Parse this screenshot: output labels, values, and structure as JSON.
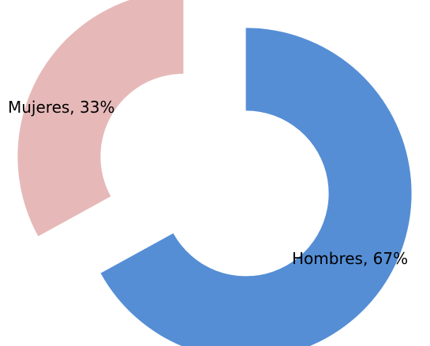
{
  "chart_data": {
    "type": "pie",
    "variant": "exploded-doughnut",
    "title": "",
    "categories": [
      "Hombres",
      "Mujeres"
    ],
    "values": [
      67,
      33
    ],
    "labels": [
      "Hombres, 67%",
      "Mujeres, 33%"
    ],
    "colors": [
      "#558ed5",
      "#e6b9b8"
    ],
    "legend": "none"
  }
}
